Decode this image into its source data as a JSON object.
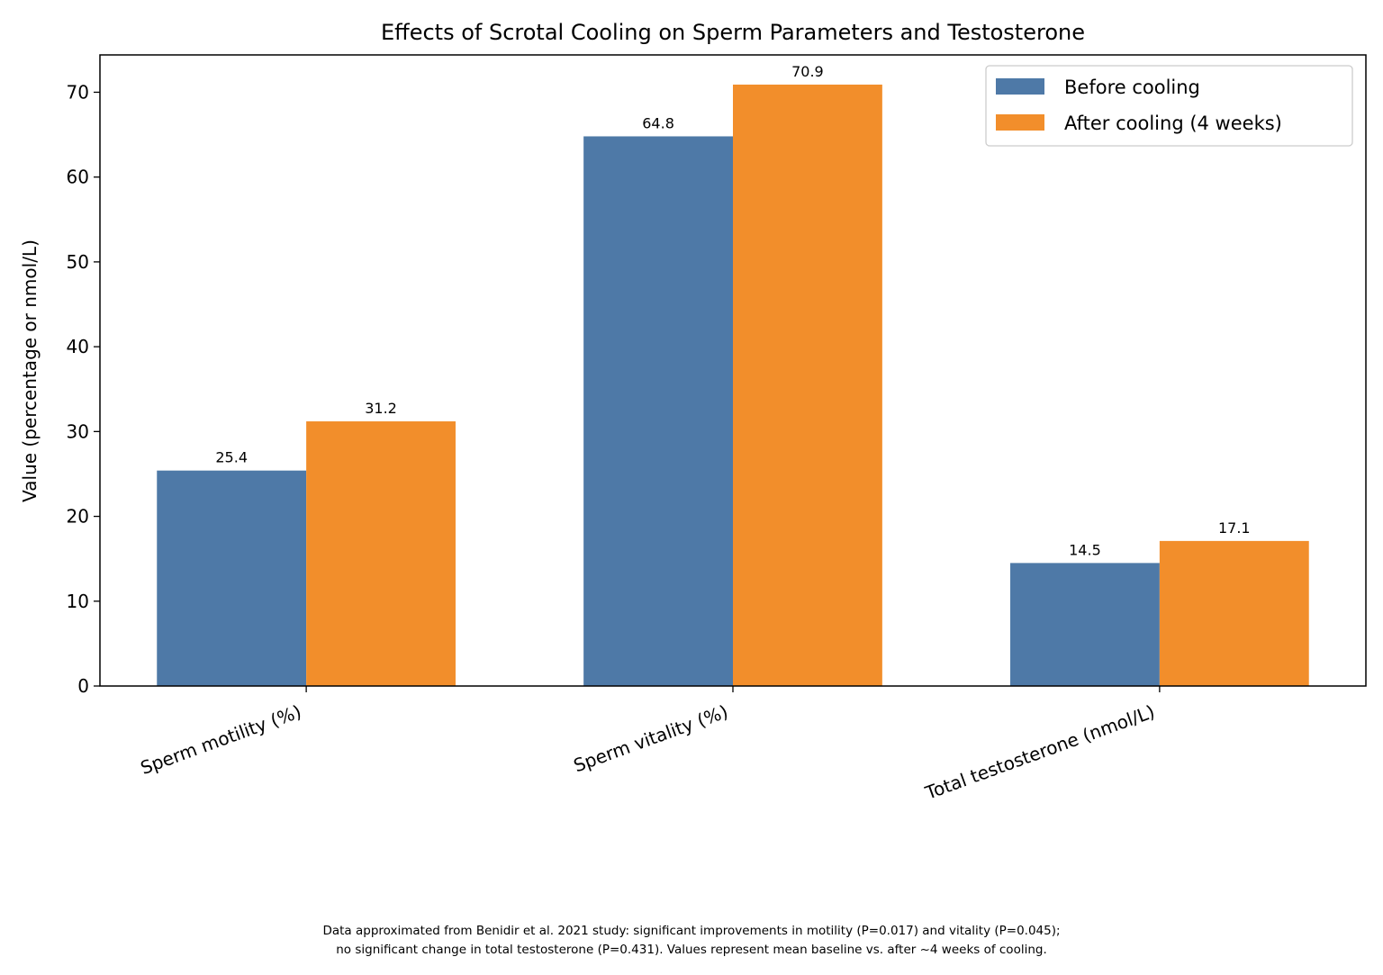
{
  "chart_data": {
    "type": "bar",
    "title": "Effects of Scrotal Cooling on Sperm Parameters and Testosterone",
    "xlabel": "",
    "ylabel": "Value (percentage or nmol/L)",
    "categories": [
      "Sperm motility (%)",
      "Sperm vitality (%)",
      "Total testosterone (nmol/L)"
    ],
    "series": [
      {
        "name": "Before cooling",
        "values": [
          25.4,
          64.8,
          14.5
        ],
        "color": "#4e79a7"
      },
      {
        "name": "After cooling (4 weeks)",
        "values": [
          31.2,
          70.9,
          17.1
        ],
        "color": "#f28e2b"
      }
    ],
    "ylim": [
      0,
      74.4
    ],
    "yticks": [
      0,
      10,
      20,
      30,
      40,
      50,
      60,
      70
    ],
    "grid": false,
    "legend_position": "top-right",
    "data_labels": true
  },
  "footnote": {
    "line1": "Data approximated from Benidir et al. 2021 study: significant improvements in motility (P=0.017) and vitality (P=0.045);",
    "line2": "no significant change in total testosterone (P=0.431). Values represent mean baseline vs. after ~4 weeks of cooling."
  }
}
